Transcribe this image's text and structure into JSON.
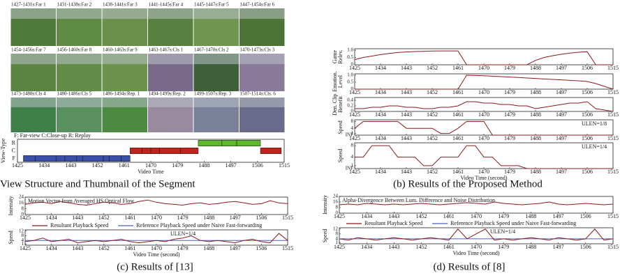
{
  "thumbnails": [
    "1427-1431s:Far 1",
    "1431-1438s:Far 2",
    "1438-1441s:Far 3",
    "1441-1445s:Far 4",
    "1445-1447s:Far 5",
    "1447-1454s:Far 6",
    "1454-1456s:Far 7",
    "1456-1460s:Far 8",
    "1460-1463s:Far 9",
    "1463-1467s:Cls 1",
    "1467-1470s:Cls 2",
    "1470-1473s:Cls 3",
    "1473-1480s:Cls 4",
    "1480-1486s:Cls 5",
    "1486-1494s:Rep. 1",
    "1494-1499s:Rep. 2",
    "1499-1507s:Rep. 3",
    "1507-1514s:Cls. 6"
  ],
  "captions": [
    "View Structure and Thumbnail of the Segment",
    "(b) Results of the Proposed Method",
    "(c) Results of [13]",
    "(d) Results of [8]"
  ],
  "chart_data": [
    {
      "type": "timeline",
      "legend_text": "F: Far-view C:Close-up R: Replay",
      "ylabel": [
        "View-Type"
      ],
      "xlabel": "Video Time",
      "xlim": [
        1425,
        1515
      ],
      "xticks": [
        1425,
        1434,
        1443,
        1452,
        1461,
        1470,
        1479,
        1488,
        1497,
        1506,
        1515
      ],
      "rows": [
        {
          "name": "F",
          "color": "#3a4fa8",
          "starts": [
            1427,
            1431,
            1438,
            1441,
            1445,
            1447,
            1454,
            1456,
            1460
          ],
          "ends": [
            1431,
            1438,
            1441,
            1445,
            1447,
            1454,
            1456,
            1460,
            1463
          ]
        },
        {
          "name": "C",
          "color": "#c0231b",
          "starts": [
            1463,
            1467,
            1470,
            1473,
            1480,
            1507
          ],
          "ends": [
            1467,
            1470,
            1473,
            1480,
            1486,
            1514
          ]
        },
        {
          "name": "R",
          "color": "#5cb82a",
          "starts": [
            1486,
            1494,
            1499
          ],
          "ends": [
            1494,
            1499,
            1507
          ]
        }
      ]
    },
    {
      "type": "line",
      "ylabel": [
        "Game",
        "Relev."
      ],
      "color": "#8b1a1a",
      "xlim": [
        1425,
        1515
      ],
      "xticks": [
        1425,
        1434,
        1443,
        1452,
        1461,
        1470,
        1479,
        1488,
        1497,
        1506,
        1515
      ],
      "ylim": [
        0,
        1.1
      ],
      "yticks": [
        0,
        0.5,
        {
          "value": 1,
          "label": "1.0"
        }
      ],
      "x": [
        1425,
        1428,
        1431,
        1434,
        1437,
        1440,
        1443,
        1446,
        1449,
        1452,
        1455,
        1458,
        1461,
        1464,
        1467,
        1470,
        1473,
        1476,
        1479,
        1482,
        1485,
        1488,
        1491,
        1494,
        1497,
        1500,
        1503,
        1506,
        1509,
        1512,
        1515
      ],
      "values": [
        0.35,
        0.5,
        0.6,
        0.7,
        0.78,
        0.84,
        0.88,
        0.91,
        0.93,
        0.94,
        0.95,
        0.95,
        0.95,
        0,
        0,
        0,
        0,
        0,
        0,
        0,
        0,
        0.3,
        0.5,
        0.62,
        0.72,
        0.8,
        0.86,
        0.9,
        0,
        0,
        0
      ]
    },
    {
      "type": "line",
      "ylabel": [
        "Emotion.",
        "Level"
      ],
      "color": "#8b1a1a",
      "xlim": [
        1425,
        1515
      ],
      "xticks": [
        1425,
        1434,
        1443,
        1452,
        1461,
        1470,
        1479,
        1488,
        1497,
        1506,
        1515
      ],
      "ylim": [
        0,
        1.1
      ],
      "yticks": [
        0,
        0.5,
        {
          "value": 1,
          "label": "1.0"
        }
      ],
      "x": [
        1425,
        1428,
        1431,
        1434,
        1437,
        1440,
        1443,
        1446,
        1449,
        1452,
        1455,
        1458,
        1461,
        1464,
        1467,
        1470,
        1473,
        1476,
        1479,
        1482,
        1485,
        1488,
        1491,
        1494,
        1497,
        1500,
        1503,
        1506,
        1509,
        1512,
        1515
      ],
      "values": [
        0,
        0,
        0,
        0,
        0,
        0,
        0,
        0,
        0,
        0,
        0,
        0,
        0,
        1,
        0.98,
        0.96,
        0.93,
        0.9,
        0.87,
        0.84,
        0.8,
        0.77,
        0.73,
        0.7,
        0.67,
        0.63,
        0.6,
        0.55,
        0.4,
        0.2,
        0
      ]
    },
    {
      "type": "line",
      "ylabel": [
        "Den. Clip",
        "Benefit"
      ],
      "color": "#8b1a1a",
      "xlim": [
        1425,
        1515
      ],
      "xticks": [
        1425,
        1434,
        1443,
        1452,
        1461,
        1470,
        1479,
        1488,
        1497,
        1506,
        1515
      ],
      "ylim": [
        0,
        0.5
      ],
      "yticks": [
        0,
        0.2,
        0.4
      ],
      "x": [
        1425,
        1428,
        1431,
        1434,
        1437,
        1440,
        1443,
        1446,
        1449,
        1452,
        1455,
        1458,
        1461,
        1464,
        1467,
        1470,
        1473,
        1476,
        1479,
        1482,
        1485,
        1488,
        1491,
        1494,
        1497,
        1500,
        1503,
        1506,
        1509,
        1512,
        1515
      ],
      "values": [
        0.1,
        0.1,
        0.15,
        0.15,
        0.2,
        0.2,
        0.15,
        0.15,
        0.1,
        0.1,
        0.15,
        0.15,
        0.2,
        0.35,
        0.35,
        0.3,
        0.3,
        0.25,
        0.25,
        0.2,
        0.2,
        0.1,
        0.15,
        0.2,
        0.25,
        0.3,
        0.3,
        0.35,
        0.1,
        0.05,
        0
      ]
    },
    {
      "type": "line",
      "ylabel": [
        "Speed"
      ],
      "annotation": "ULEN=1/8",
      "color": "#8b1a1a",
      "xlim": [
        1425,
        1515
      ],
      "xticks": [
        1425,
        1434,
        1443,
        1452,
        1461,
        1470,
        1479,
        1488,
        1497,
        1506,
        1515
      ],
      "ylim": [
        0,
        9
      ],
      "yticks": [
        {
          "value": 0,
          "label": "INF"
        },
        1,
        4,
        8
      ],
      "x": [
        1425,
        1428,
        1431,
        1434,
        1437,
        1440,
        1443,
        1446,
        1449,
        1452,
        1455,
        1458,
        1461,
        1464,
        1467,
        1470,
        1473,
        1476,
        1479,
        1482,
        1485,
        1488,
        1491,
        1494,
        1497,
        1500,
        1503,
        1506,
        1509,
        1512,
        1515
      ],
      "values": [
        4,
        8,
        8,
        8,
        8,
        8,
        4,
        4,
        4,
        4,
        1,
        1,
        4,
        8,
        8,
        8,
        0,
        0,
        0,
        0,
        0,
        0,
        0,
        0,
        0,
        0,
        0,
        0,
        0,
        0,
        0
      ]
    },
    {
      "type": "line",
      "ylabel": [
        "Speed"
      ],
      "annotation": "ULEN=1/4",
      "xlabel": "Video Time (second)",
      "color": "#8b1a1a",
      "xlim": [
        1425,
        1515
      ],
      "xticks": [
        1425,
        1434,
        1443,
        1452,
        1461,
        1470,
        1479,
        1488,
        1497,
        1506,
        1515
      ],
      "ylim": [
        0,
        9
      ],
      "yticks": [
        {
          "value": 0,
          "label": "INF"
        },
        1,
        4,
        8
      ],
      "x": [
        1425,
        1428,
        1431,
        1434,
        1437,
        1440,
        1443,
        1446,
        1449,
        1452,
        1455,
        1458,
        1461,
        1464,
        1467,
        1470,
        1473,
        1476,
        1479,
        1482,
        1485,
        1488,
        1491,
        1494,
        1497,
        1500,
        1503,
        1506,
        1509,
        1512,
        1515
      ],
      "values": [
        4,
        4,
        8,
        8,
        8,
        4,
        4,
        4,
        1,
        1,
        4,
        4,
        4,
        8,
        8,
        4,
        4,
        1,
        1,
        1,
        0,
        0,
        0,
        0,
        0,
        0,
        0,
        0,
        0,
        0,
        0
      ]
    },
    {
      "type": "line",
      "ylabel": [
        "Intensity"
      ],
      "annotation": "Motion Vector from Averaged HS Optical Flow",
      "color": "#8b1a1a",
      "xlim": [
        1425,
        1515
      ],
      "xticks": [
        1425,
        1434,
        1443,
        1452,
        1461,
        1470,
        1479,
        1488,
        1497,
        1506,
        1515
      ],
      "ylim": [
        0,
        24
      ],
      "yticks": [
        0,
        8,
        16,
        24
      ],
      "x": [
        1425,
        1428,
        1431,
        1434,
        1437,
        1440,
        1443,
        1446,
        1449,
        1452,
        1455,
        1458,
        1461,
        1464,
        1467,
        1470,
        1473,
        1476,
        1479,
        1482,
        1485,
        1488,
        1491,
        1494,
        1497,
        1500,
        1503,
        1506,
        1509,
        1512,
        1515
      ],
      "values": [
        14,
        16,
        17,
        15,
        18,
        16,
        14,
        13,
        15,
        17,
        16,
        14,
        15,
        18,
        20,
        17,
        15,
        14,
        13,
        15,
        16,
        14,
        15,
        17,
        18,
        16,
        14,
        15,
        19,
        16,
        15
      ]
    },
    {
      "type": "line",
      "ylabel": [
        "Speed"
      ],
      "annotation": "ULEN=1/4",
      "xlabel": "Video Time (second)",
      "xlim": [
        1425,
        1515
      ],
      "xticks": [
        1425,
        1434,
        1443,
        1452,
        1461,
        1470,
        1479,
        1488,
        1497,
        1506,
        1515
      ],
      "ylim": [
        0,
        13
      ],
      "yticks": [
        1,
        4,
        8,
        12
      ],
      "x": [
        1425,
        1428,
        1431,
        1434,
        1437,
        1440,
        1443,
        1446,
        1449,
        1452,
        1455,
        1458,
        1461,
        1464,
        1467,
        1470,
        1473,
        1476,
        1479,
        1482,
        1485,
        1488,
        1491,
        1494,
        1497,
        1500,
        1503,
        1506,
        1509,
        1512,
        1515
      ],
      "series": [
        {
          "name": "Resultant Playback Speed",
          "color": "#8b1a1a",
          "values": [
            3,
            4,
            6,
            3,
            4,
            5,
            2,
            3,
            4,
            3,
            4,
            5,
            3,
            2,
            3,
            4,
            3,
            5,
            6,
            8,
            4,
            3,
            4,
            3,
            2,
            4,
            5,
            3,
            2,
            10,
            4
          ]
        },
        {
          "name": "Reference Playback Speed under Naive Fast-forwarding",
          "color": "#4a5fc1",
          "values": [
            4,
            4,
            4,
            4,
            4,
            4,
            4,
            4,
            4,
            4,
            4,
            4,
            4,
            4,
            4,
            4,
            4,
            4,
            4,
            4,
            4,
            4,
            4,
            4,
            4,
            4,
            4,
            4,
            4,
            4,
            4
          ]
        }
      ]
    },
    {
      "type": "line",
      "ylabel": [
        "Intensity"
      ],
      "annotation": "Alpha-Divergence Between Lum. Difference and Noise Distribution",
      "color": "#8b1a1a",
      "xlim": [
        1425,
        1515
      ],
      "xticks": [
        1425,
        1434,
        1443,
        1452,
        1461,
        1470,
        1479,
        1488,
        1497,
        1506,
        1515
      ],
      "ylim": [
        0,
        24
      ],
      "yticks": [
        0,
        8,
        16,
        24
      ],
      "x": [
        1425,
        1428,
        1431,
        1434,
        1437,
        1440,
        1443,
        1446,
        1449,
        1452,
        1455,
        1458,
        1461,
        1464,
        1467,
        1470,
        1473,
        1476,
        1479,
        1482,
        1485,
        1488,
        1491,
        1494,
        1497,
        1500,
        1503,
        1506,
        1509,
        1512,
        1515
      ],
      "values": [
        12,
        13,
        12,
        14,
        13,
        12,
        13,
        12,
        13,
        14,
        13,
        12,
        13,
        14,
        15,
        14,
        13,
        16,
        14,
        13,
        12,
        13,
        14,
        16,
        13,
        12,
        13,
        14,
        13,
        12,
        13
      ]
    },
    {
      "type": "line",
      "ylabel": [
        "Speed"
      ],
      "annotation": "ULEN=1/4",
      "xlabel": "Video Time (second)",
      "xlim": [
        1425,
        1515
      ],
      "xticks": [
        1425,
        1434,
        1443,
        1452,
        1461,
        1470,
        1479,
        1488,
        1497,
        1506,
        1515
      ],
      "ylim": [
        0,
        13
      ],
      "yticks": [
        1,
        4,
        8,
        12
      ],
      "x": [
        1425,
        1428,
        1431,
        1434,
        1437,
        1440,
        1443,
        1446,
        1449,
        1452,
        1455,
        1458,
        1461,
        1464,
        1467,
        1470,
        1473,
        1476,
        1479,
        1482,
        1485,
        1488,
        1491,
        1494,
        1497,
        1500,
        1503,
        1506,
        1509,
        1512,
        1515
      ],
      "series": [
        {
          "name": "Resultant Playback Speed",
          "color": "#8b1a1a",
          "values": [
            4,
            3,
            5,
            4,
            3,
            4,
            5,
            4,
            3,
            4,
            5,
            4,
            3,
            12,
            4,
            8,
            12,
            3,
            4,
            3,
            4,
            5,
            4,
            3,
            5,
            4,
            3,
            4,
            12,
            3,
            4
          ]
        },
        {
          "name": "Reference Playback Speed under Naive Fast-forwarding",
          "color": "#4a5fc1",
          "values": [
            4,
            4,
            4,
            4,
            4,
            4,
            4,
            4,
            4,
            4,
            4,
            4,
            4,
            4,
            4,
            4,
            4,
            4,
            4,
            4,
            4,
            4,
            4,
            4,
            4,
            4,
            4,
            4,
            4,
            4,
            4
          ]
        }
      ]
    }
  ]
}
